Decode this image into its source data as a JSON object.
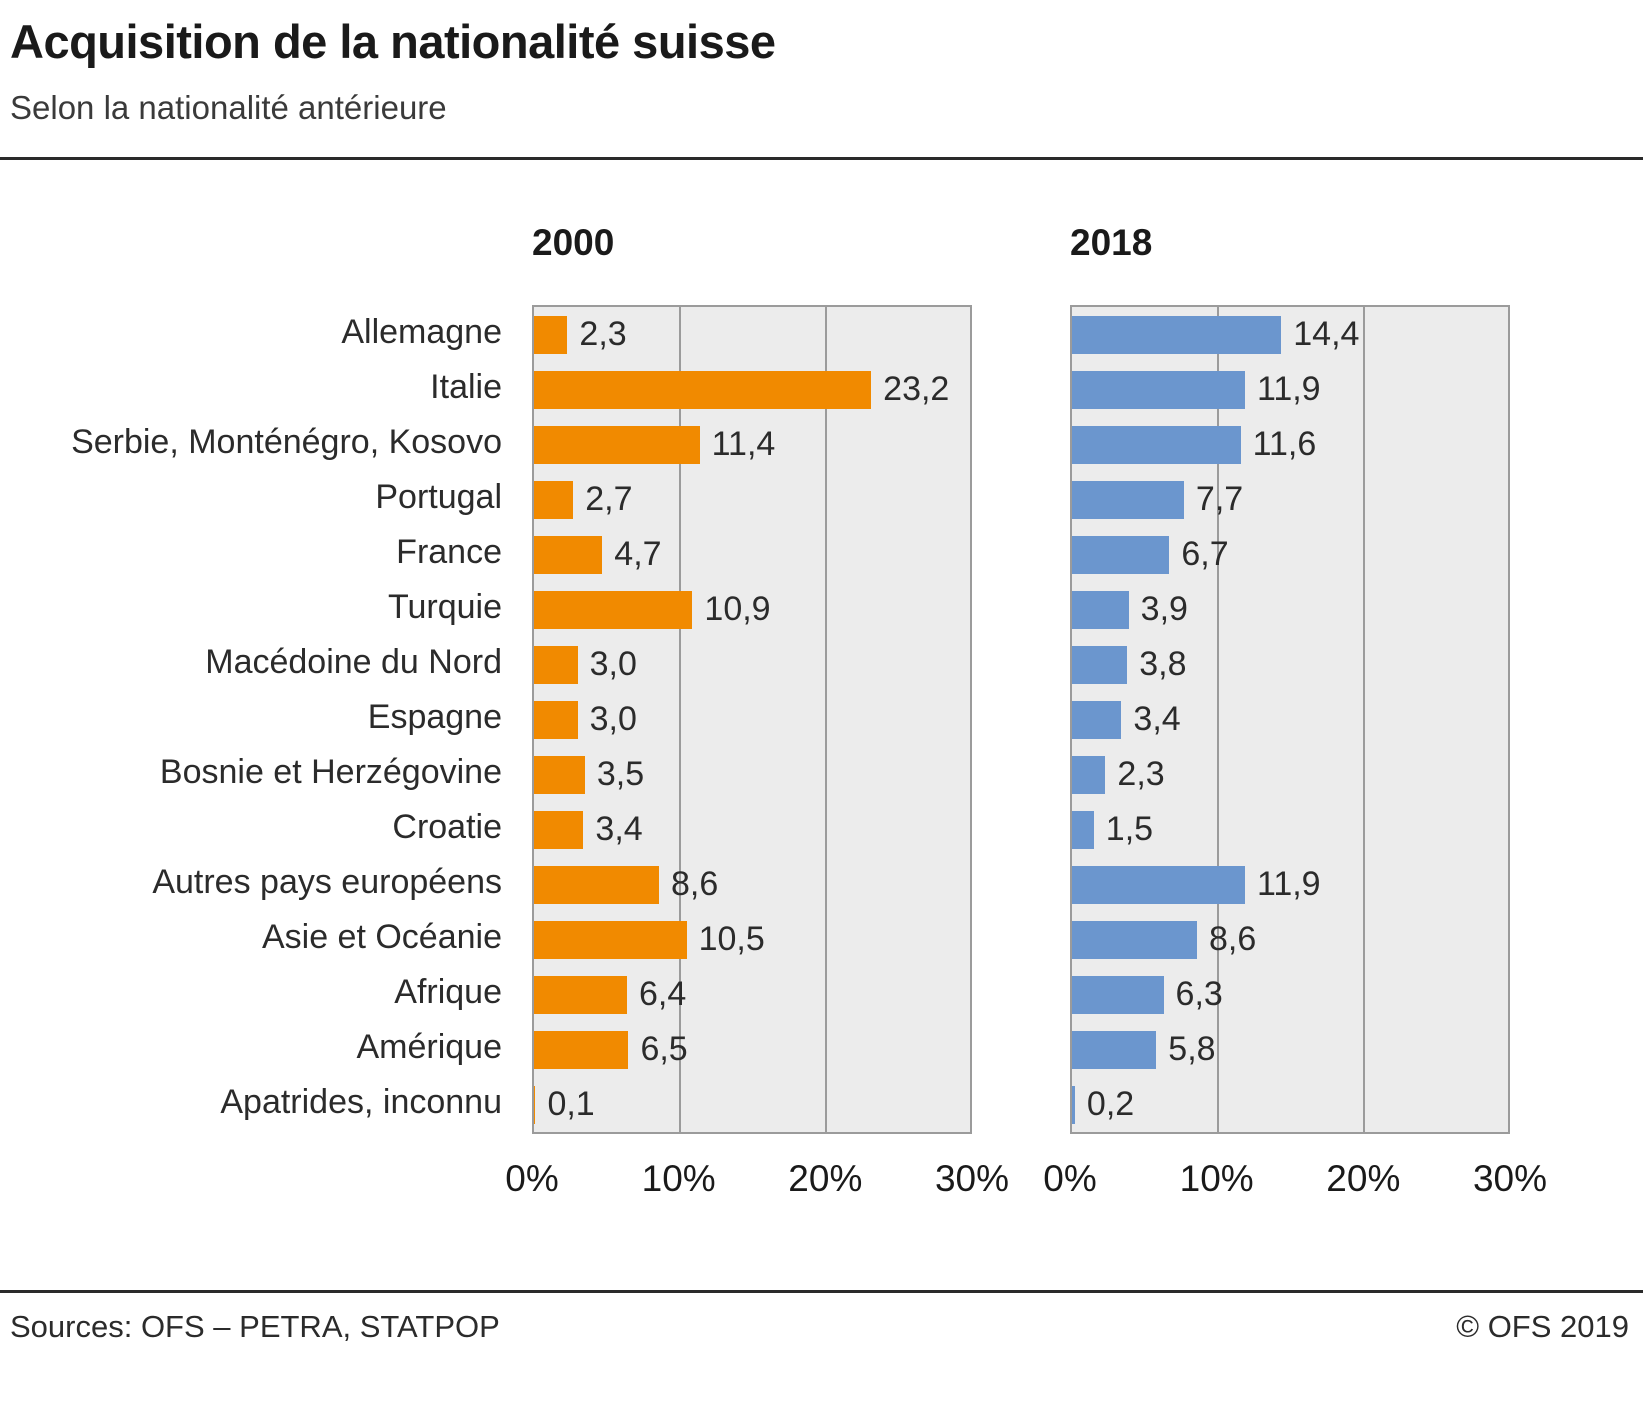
{
  "header": {
    "title": "Acquisition de la nationalité suisse",
    "subtitle": "Selon la nationalité antérieure"
  },
  "footer": {
    "sources": "Sources: OFS – PETRA, STATPOP",
    "copyright": "© OFS 2019"
  },
  "chart_data": {
    "type": "bar",
    "orientation": "horizontal",
    "title": "Acquisition de la nationalité suisse",
    "subtitle": "Selon la nationalité antérieure",
    "categories": [
      "Allemagne",
      "Italie",
      "Serbie, Monténégro, Kosovo",
      "Portugal",
      "France",
      "Turquie",
      "Macédoine du Nord",
      "Espagne",
      "Bosnie et Herzégovine",
      "Croatie",
      "Autres pays européens",
      "Asie et Océanie",
      "Afrique",
      "Amérique",
      "Apatrides, inconnu"
    ],
    "series": [
      {
        "name": "2000",
        "color": "#F18A00",
        "values": [
          2.3,
          23.2,
          11.4,
          2.7,
          4.7,
          10.9,
          3.0,
          3.0,
          3.5,
          3.4,
          8.6,
          10.5,
          6.4,
          6.5,
          0.1
        ]
      },
      {
        "name": "2018",
        "color": "#6B96CE",
        "values": [
          14.4,
          11.9,
          11.6,
          7.7,
          6.7,
          3.9,
          3.8,
          3.4,
          2.3,
          1.5,
          11.9,
          8.6,
          6.3,
          5.8,
          0.2
        ]
      }
    ],
    "xlim": [
      0,
      30
    ],
    "xticks": [
      "0%",
      "10%",
      "20%",
      "30%"
    ],
    "grid": true,
    "legend_position": "panel-headers",
    "panel_bg": "#ECECEC",
    "decimal_separator": ","
  }
}
